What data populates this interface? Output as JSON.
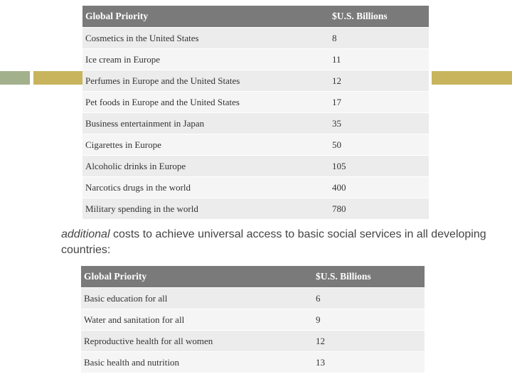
{
  "table1": {
    "headers": [
      "Global Priority",
      "$U.S. Billions"
    ],
    "rows": [
      [
        "Cosmetics in the United States",
        "8"
      ],
      [
        "Ice cream in Europe",
        "11"
      ],
      [
        "Perfumes in Europe and the United States",
        "12"
      ],
      [
        "Pet foods in Europe and the United States",
        "17"
      ],
      [
        "Business entertainment in Japan",
        "35"
      ],
      [
        "Cigarettes in Europe",
        "50"
      ],
      [
        "Alcoholic drinks in Europe",
        "105"
      ],
      [
        "Narcotics drugs in the world",
        "400"
      ],
      [
        "Military spending in the world",
        "780"
      ]
    ]
  },
  "caption": {
    "emphasis": "additional",
    "rest": " costs to achieve universal access to basic social services in all developing countries:"
  },
  "table2": {
    "headers": [
      "Global Priority",
      "$U.S. Billions"
    ],
    "rows": [
      [
        "Basic education for all",
        "6"
      ],
      [
        "Water and sanitation for all",
        "9"
      ],
      [
        "Reproductive health for all women",
        "12"
      ],
      [
        "Basic health and nutrition",
        "13"
      ]
    ]
  },
  "colors": {
    "header_bg": "#7a7a7a",
    "row_odd": "#ececec",
    "row_even": "#f5f5f5",
    "deco_green": "#a3b08c",
    "deco_gold": "#c8b45c"
  }
}
